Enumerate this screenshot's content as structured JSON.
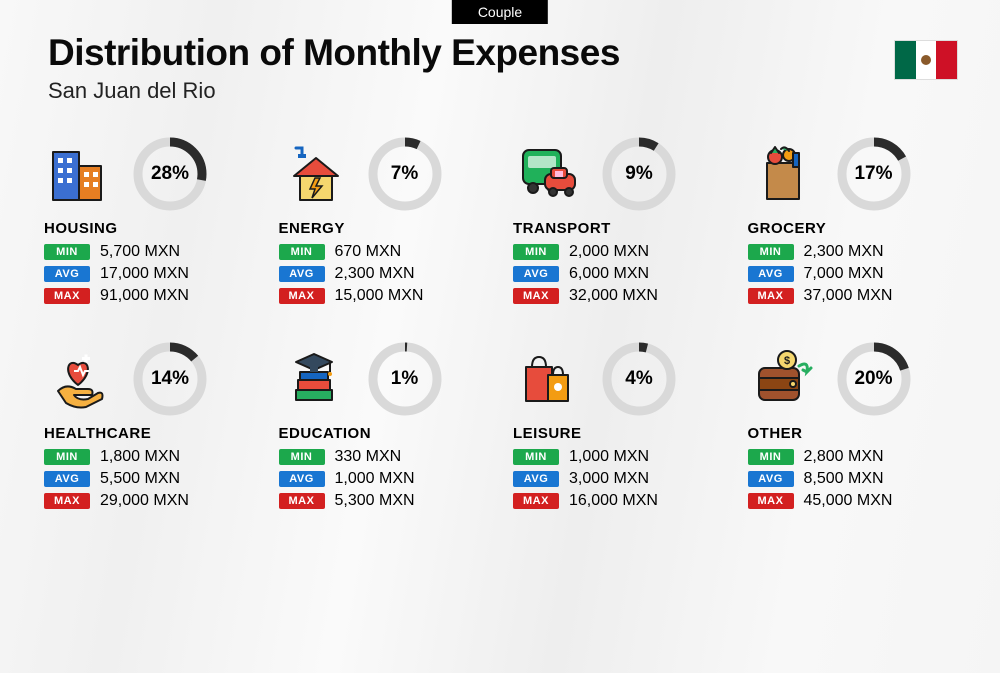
{
  "top_label": "Couple",
  "title": "Distribution of Monthly Expenses",
  "subtitle": "San Juan del Rio",
  "flag_colors": {
    "green": "#006847",
    "white": "#ffffff",
    "red": "#ce1126"
  },
  "currency": "MXN",
  "donut": {
    "radius": 32,
    "stroke_width": 9,
    "track_color": "#d9d9d9",
    "fill_color": "#2b2b2b"
  },
  "tag_labels": {
    "min": "MIN",
    "avg": "AVG",
    "max": "MAX"
  },
  "tag_colors": {
    "min": "#1ca84c",
    "avg": "#1976d2",
    "max": "#d32020"
  },
  "categories": [
    {
      "key": "housing",
      "name": "HOUSING",
      "pct": 28,
      "min": "5,700 MXN",
      "avg": "17,000 MXN",
      "max": "91,000 MXN",
      "icon": "buildings"
    },
    {
      "key": "energy",
      "name": "ENERGY",
      "pct": 7,
      "min": "670 MXN",
      "avg": "2,300 MXN",
      "max": "15,000 MXN",
      "icon": "house-bolt"
    },
    {
      "key": "transport",
      "name": "TRANSPORT",
      "pct": 9,
      "min": "2,000 MXN",
      "avg": "6,000 MXN",
      "max": "32,000 MXN",
      "icon": "bus-car"
    },
    {
      "key": "grocery",
      "name": "GROCERY",
      "pct": 17,
      "min": "2,300 MXN",
      "avg": "7,000 MXN",
      "max": "37,000 MXN",
      "icon": "grocery-bag"
    },
    {
      "key": "healthcare",
      "name": "HEALTHCARE",
      "pct": 14,
      "min": "1,800 MXN",
      "avg": "5,500 MXN",
      "max": "29,000 MXN",
      "icon": "heart-hand"
    },
    {
      "key": "education",
      "name": "EDUCATION",
      "pct": 1,
      "min": "330 MXN",
      "avg": "1,000 MXN",
      "max": "5,300 MXN",
      "icon": "grad-books"
    },
    {
      "key": "leisure",
      "name": "LEISURE",
      "pct": 4,
      "min": "1,000 MXN",
      "avg": "3,000 MXN",
      "max": "16,000 MXN",
      "icon": "shopping-bags"
    },
    {
      "key": "other",
      "name": "OTHER",
      "pct": 20,
      "min": "2,800 MXN",
      "avg": "8,500 MXN",
      "max": "45,000 MXN",
      "icon": "wallet-coin"
    }
  ]
}
